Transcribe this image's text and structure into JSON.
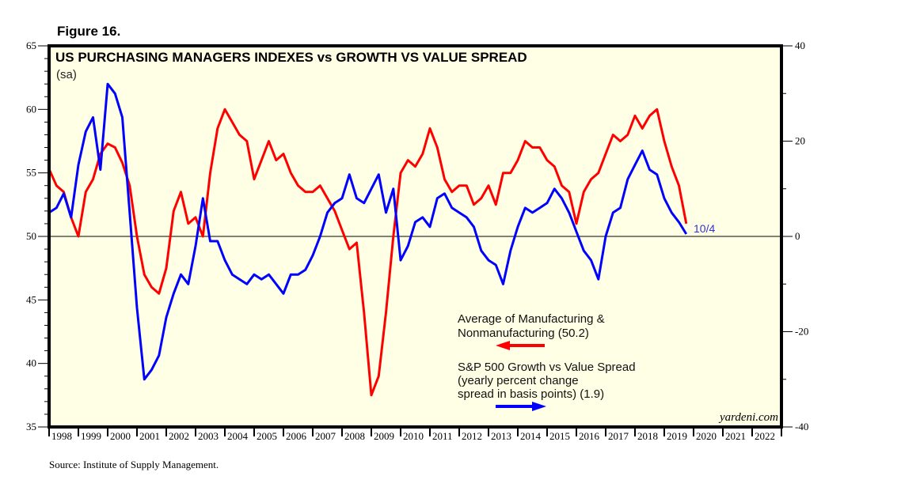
{
  "figure_label": "Figure 16.",
  "source": "Source: Institute of Supply Management.",
  "chart_data": {
    "type": "line",
    "title": "US PURCHASING MANAGERS INDEXES vs GROWTH VS VALUE SPREAD",
    "subtitle": "(sa)",
    "watermark": "yardeni.com",
    "xlabel": "",
    "ylabel_left": "",
    "ylabel_right": "",
    "xlim": [
      1998,
      2023
    ],
    "ylim_left": [
      35,
      65
    ],
    "ylim_right": [
      -40,
      40
    ],
    "left_ticks": [
      35,
      40,
      45,
      50,
      55,
      60,
      65
    ],
    "right_ticks": [
      -40,
      -20,
      0,
      20,
      40
    ],
    "x_tick_labels": [
      "1998",
      "1999",
      "2000",
      "2001",
      "2002",
      "2003",
      "2004",
      "2005",
      "2006",
      "2007",
      "2008",
      "2009",
      "2010",
      "2011",
      "2012",
      "2013",
      "2014",
      "2015",
      "2016",
      "2017",
      "2018",
      "2019",
      "2020",
      "2021",
      "2022"
    ],
    "reference_line": {
      "axis": "left",
      "value": 50
    },
    "annotation": {
      "text": "10/4",
      "color": "#3333cc"
    },
    "grid": false,
    "legend": [
      {
        "label_lines": [
          "Average of Manufacturing &",
          "Nonmanufacturing (50.2)"
        ],
        "color": "#ff0000",
        "arrow": "left"
      },
      {
        "label_lines": [
          "S&P 500 Growth vs Value Spread",
          "(yearly percent change",
          "spread in basis points) (1.9)"
        ],
        "color": "#0000ff",
        "arrow": "right"
      }
    ],
    "series": [
      {
        "name": "Average of Manufacturing & Nonmanufacturing",
        "axis": "left",
        "color": "#ff0000",
        "x": [
          1998.0,
          1998.25,
          1998.5,
          1998.75,
          1999.0,
          1999.25,
          1999.5,
          1999.75,
          2000.0,
          2000.25,
          2000.5,
          2000.75,
          2001.0,
          2001.25,
          2001.5,
          2001.75,
          2002.0,
          2002.25,
          2002.5,
          2002.75,
          2003.0,
          2003.25,
          2003.5,
          2003.75,
          2004.0,
          2004.25,
          2004.5,
          2004.75,
          2005.0,
          2005.25,
          2005.5,
          2005.75,
          2006.0,
          2006.25,
          2006.5,
          2006.75,
          2007.0,
          2007.25,
          2007.5,
          2007.75,
          2008.0,
          2008.25,
          2008.5,
          2008.75,
          2009.0,
          2009.25,
          2009.5,
          2009.75,
          2010.0,
          2010.25,
          2010.5,
          2010.75,
          2011.0,
          2011.25,
          2011.5,
          2011.75,
          2012.0,
          2012.25,
          2012.5,
          2012.75,
          2013.0,
          2013.25,
          2013.5,
          2013.75,
          2014.0,
          2014.25,
          2014.5,
          2014.75,
          2015.0,
          2015.25,
          2015.5,
          2015.75,
          2016.0,
          2016.25,
          2016.5,
          2016.75,
          2017.0,
          2017.25,
          2017.5,
          2017.75,
          2018.0,
          2018.25,
          2018.5,
          2018.75,
          2019.0,
          2019.25,
          2019.5,
          2019.75
        ],
        "values": [
          55.3,
          54.0,
          53.5,
          51.5,
          50.0,
          53.5,
          54.5,
          56.5,
          57.3,
          57.0,
          55.8,
          54.0,
          50.0,
          47.0,
          46.0,
          45.5,
          47.5,
          52.0,
          53.5,
          51.0,
          51.5,
          50.0,
          55.0,
          58.5,
          60.0,
          59.0,
          58.0,
          57.5,
          54.5,
          56.0,
          57.5,
          56.0,
          56.5,
          55.0,
          54.0,
          53.5,
          53.5,
          54.0,
          53.0,
          52.0,
          50.5,
          49.0,
          49.5,
          44.0,
          37.5,
          39.0,
          44.0,
          50.0,
          55.0,
          56.0,
          55.5,
          56.5,
          58.5,
          57.0,
          54.5,
          53.5,
          54.0,
          54.0,
          52.5,
          53.0,
          54.0,
          52.5,
          55.0,
          55.0,
          56.0,
          57.5,
          57.0,
          57.0,
          56.0,
          55.5,
          54.0,
          53.5,
          51.0,
          53.5,
          54.5,
          55.0,
          56.5,
          58.0,
          57.5,
          58.0,
          59.5,
          58.5,
          59.5,
          60.0,
          57.5,
          55.5,
          54.0,
          51.0
        ]
      },
      {
        "name": "S&P 500 Growth vs Value Spread",
        "axis": "right",
        "color": "#0000ff",
        "x": [
          1998.0,
          1998.25,
          1998.5,
          1998.75,
          1999.0,
          1999.25,
          1999.5,
          1999.75,
          2000.0,
          2000.25,
          2000.5,
          2000.75,
          2001.0,
          2001.25,
          2001.5,
          2001.75,
          2002.0,
          2002.25,
          2002.5,
          2002.75,
          2003.0,
          2003.25,
          2003.5,
          2003.75,
          2004.0,
          2004.25,
          2004.5,
          2004.75,
          2005.0,
          2005.25,
          2005.5,
          2005.75,
          2006.0,
          2006.25,
          2006.5,
          2006.75,
          2007.0,
          2007.25,
          2007.5,
          2007.75,
          2008.0,
          2008.25,
          2008.5,
          2008.75,
          2009.0,
          2009.25,
          2009.5,
          2009.75,
          2010.0,
          2010.25,
          2010.5,
          2010.75,
          2011.0,
          2011.25,
          2011.5,
          2011.75,
          2012.0,
          2012.25,
          2012.5,
          2012.75,
          2013.0,
          2013.25,
          2013.5,
          2013.75,
          2014.0,
          2014.25,
          2014.5,
          2014.75,
          2015.0,
          2015.25,
          2015.5,
          2015.75,
          2016.0,
          2016.25,
          2016.5,
          2016.75,
          2017.0,
          2017.25,
          2017.5,
          2017.75,
          2018.0,
          2018.25,
          2018.5,
          2018.75,
          2019.0,
          2019.25,
          2019.5,
          2019.75
        ],
        "values": [
          5.0,
          6.0,
          9.0,
          4.0,
          15.0,
          22.0,
          25.0,
          14.0,
          32.0,
          30.0,
          25.0,
          5.0,
          -15.0,
          -30.0,
          -28.0,
          -25.0,
          -17.0,
          -12.0,
          -8.0,
          -10.0,
          -2.0,
          8.0,
          -1.0,
          -1.0,
          -5.0,
          -8.0,
          -9.0,
          -10.0,
          -8.0,
          -9.0,
          -8.0,
          -10.0,
          -12.0,
          -8.0,
          -8.0,
          -7.0,
          -4.0,
          0.0,
          5.0,
          7.0,
          8.0,
          13.0,
          8.0,
          7.0,
          10.0,
          13.0,
          5.0,
          10.0,
          -5.0,
          -2.0,
          3.0,
          4.0,
          2.0,
          8.0,
          9.0,
          6.0,
          5.0,
          4.0,
          2.0,
          -3.0,
          -5.0,
          -6.0,
          -10.0,
          -3.0,
          2.0,
          6.0,
          5.0,
          6.0,
          7.0,
          10.0,
          8.0,
          5.0,
          1.0,
          -3.0,
          -5.0,
          -9.0,
          0.0,
          5.0,
          6.0,
          12.0,
          15.0,
          18.0,
          14.0,
          13.0,
          8.0,
          5.0,
          3.0,
          0.5
        ]
      }
    ]
  }
}
